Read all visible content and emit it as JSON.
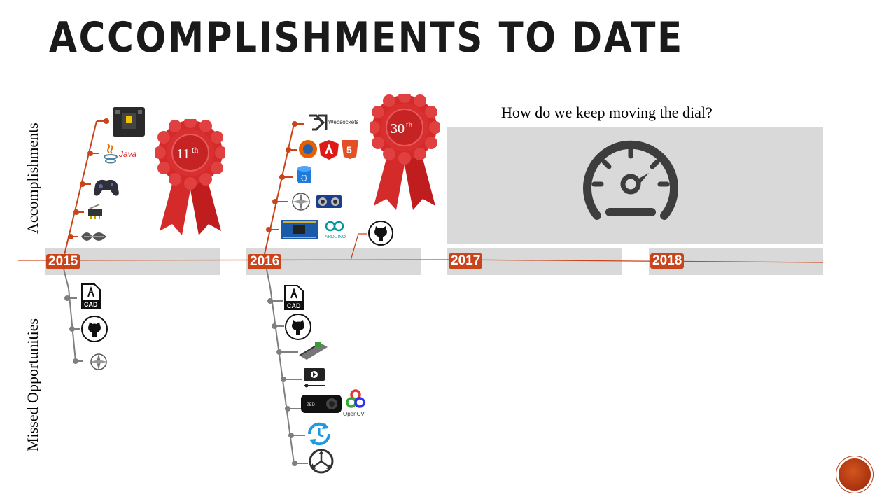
{
  "slide": {
    "title": "ACCOMPLISHMENTS TO DATE",
    "label_accomplishments": "Accomplishments",
    "label_missed": "Missed Opportunities",
    "question": "How do we keep moving the dial?"
  },
  "timeline": {
    "years": [
      "2015",
      "2016",
      "2017",
      "2018"
    ]
  },
  "awards": [
    {
      "place": "11",
      "suffix": "th"
    },
    {
      "place": "30",
      "suffix": "th"
    }
  ],
  "icon_labels": {
    "java": "Java",
    "websockets": "Websockets",
    "arduino": "ARDUINO",
    "opencv": "OpenCV",
    "cad": "CAD",
    "zed": "ZED"
  },
  "colors": {
    "accent": "#c9441a",
    "ribbon": "#d42a2a",
    "timeline_line": "#c9441a",
    "box_gray": "#d9d9d9"
  }
}
